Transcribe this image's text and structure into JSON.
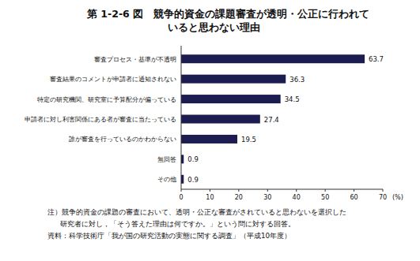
{
  "chart_data": {
    "type": "bar",
    "orientation": "horizontal",
    "title": "第 1-2-6 図　競争的資金の課題審査が透明・公正に行われて\nいると思わない理由",
    "categories": [
      "審査プロセス・基準が不透明",
      "審査結果のコメントが申請者に通知されない",
      "特定の研究機関、研究室に予算配分が偏っている",
      "申請者に対し利害関係にある者が審査に当たっている",
      "誰が審査を行っているのかわからない",
      "無回答",
      "その他"
    ],
    "values": [
      63.7,
      36.3,
      34.5,
      27.4,
      19.5,
      0.9,
      0.9
    ],
    "color": "#1c1c50",
    "xlim": [
      0,
      70
    ],
    "xticks": [
      0,
      10,
      20,
      30,
      40,
      50,
      60,
      70
    ],
    "x_label": "(%)",
    "data_labels": true,
    "grid": false,
    "annotations": [
      "注）競争的資金の課題の審査において、透明・公正な審査がされていると思わないを選択した",
      "研究者に対し，「そう答えた理由は何ですか。」という問に対する回答。",
      "資料：科学技術庁「我が国の研究活動の実態に関する調査」（平成10年度）"
    ]
  }
}
